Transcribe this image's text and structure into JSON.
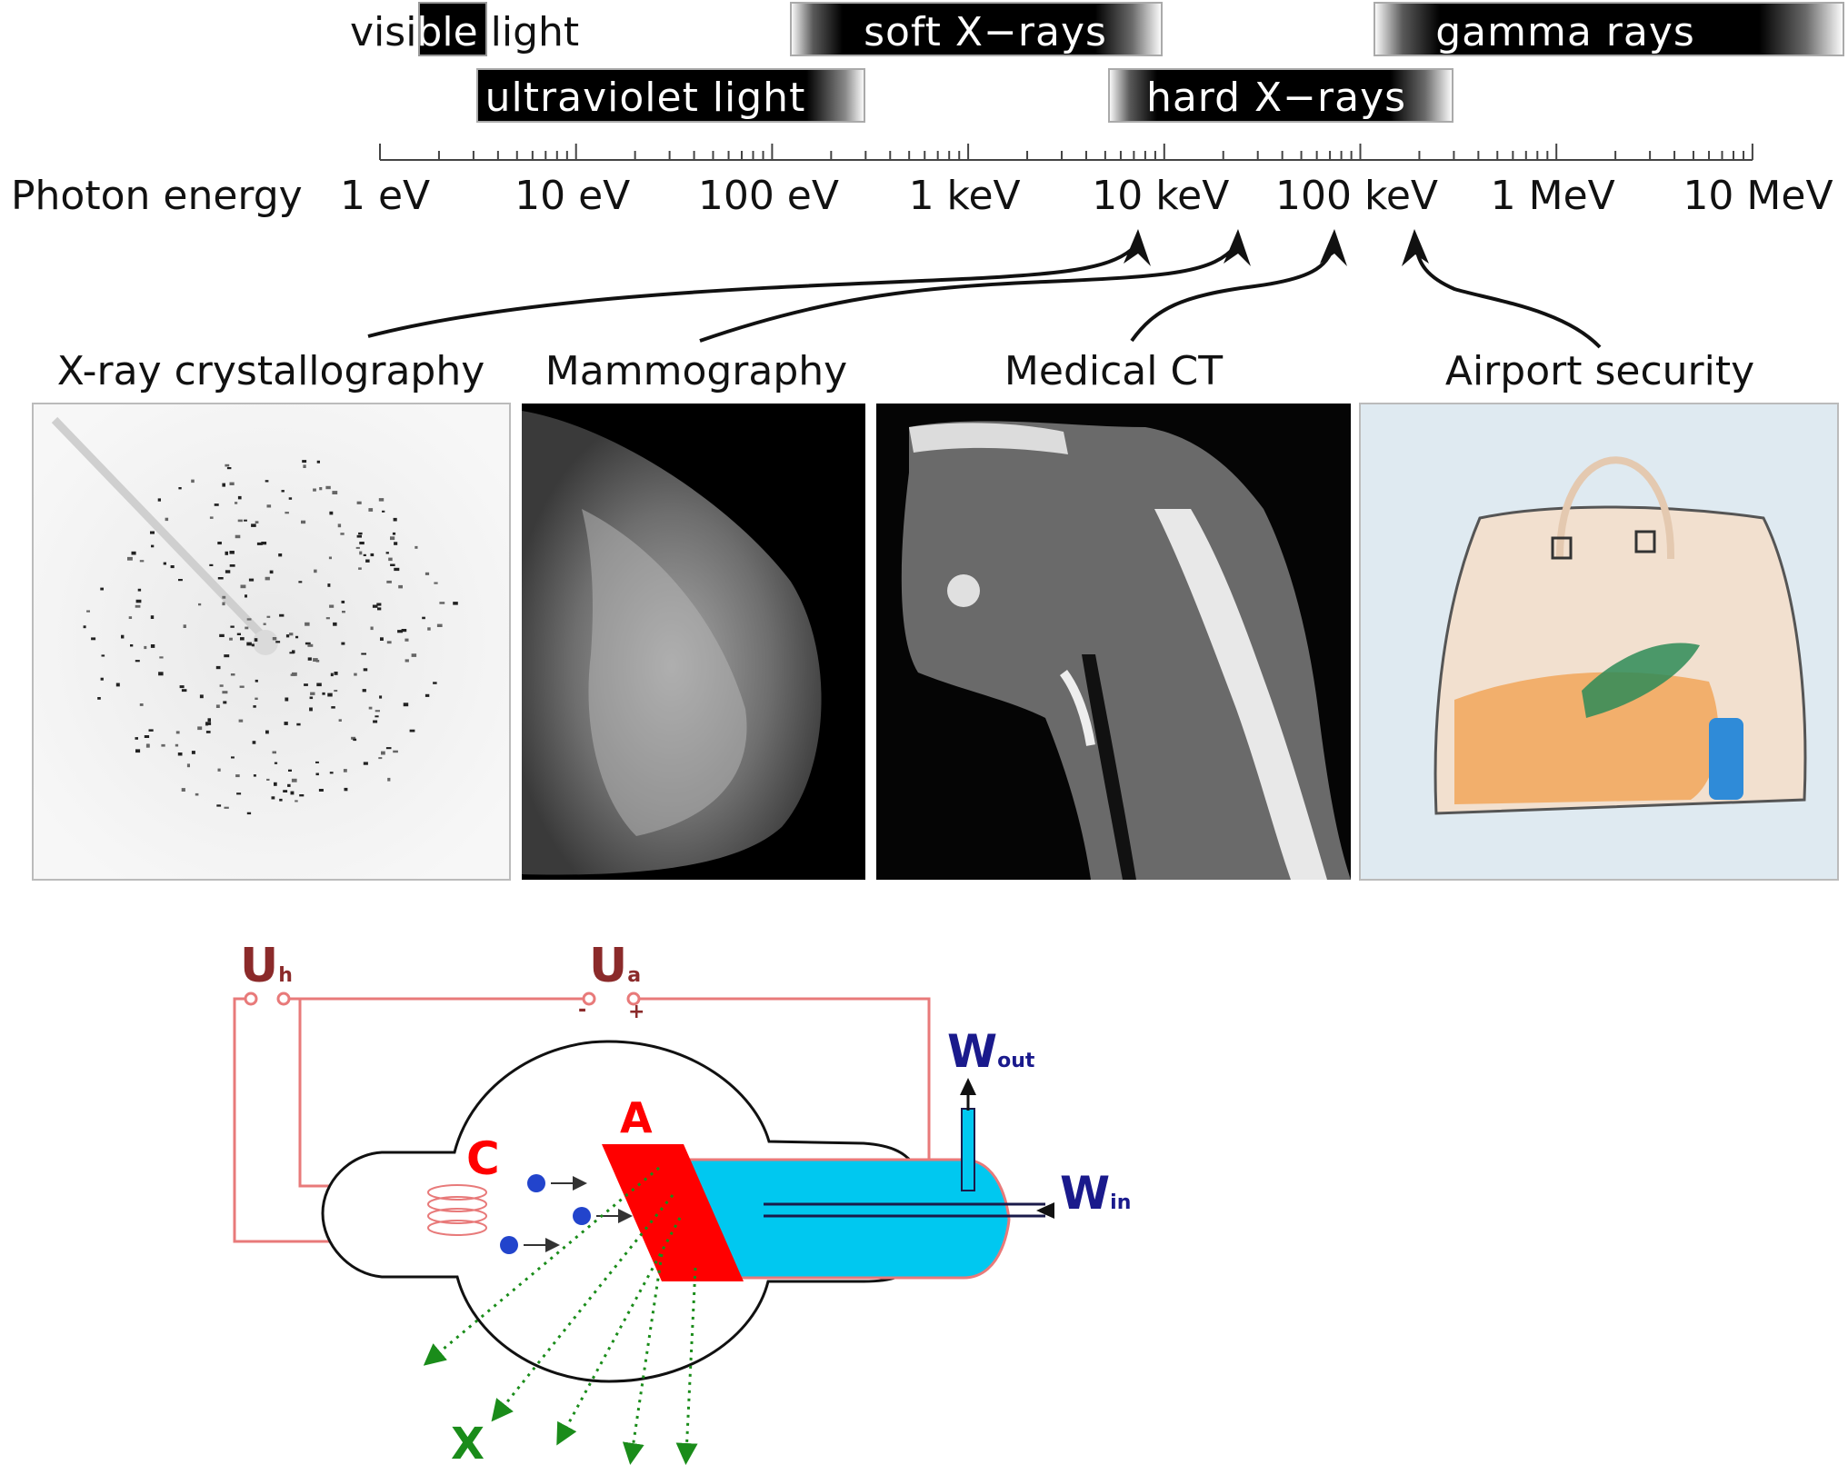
{
  "spectrum": {
    "bands": [
      {
        "id": "visible",
        "label_dark": "ble",
        "label_pre": "visi",
        "label_post": " light"
      },
      {
        "id": "ultraviolet",
        "label": "ultraviolet light"
      },
      {
        "id": "soft-xrays",
        "label": "soft X−rays"
      },
      {
        "id": "hard-xrays",
        "label": "hard X−rays"
      },
      {
        "id": "gamma",
        "label": "gamma rays"
      }
    ],
    "axis_title": "Photon energy",
    "ticks": [
      "1 eV",
      "10 eV",
      "100 eV",
      "1 keV",
      "10 keV",
      "100 keV",
      "1 MeV",
      "10 MeV"
    ]
  },
  "applications": [
    {
      "label": "X-ray crystallography"
    },
    {
      "label": "Mammography"
    },
    {
      "label": "Medical CT"
    },
    {
      "label": "Airport security"
    }
  ],
  "tube": {
    "uh_main": "U",
    "uh_sub": "h",
    "ua_main": "U",
    "ua_sub": "a",
    "ua_minus": "-",
    "ua_plus": "+",
    "cathode": "C",
    "anode": "A",
    "wout_main": "W",
    "wout_sub": "out",
    "win_main": "W",
    "win_sub": "in",
    "xray": "X"
  },
  "colors": {
    "circuit": "#e87a7a",
    "label_dark_red": "#8b2a2a",
    "anode_red": "#ff0000",
    "coolant": "#00c8f0",
    "water_blue": "#1a1a8c",
    "electron": "#2244cc",
    "xray_green": "#1a8c1a"
  }
}
